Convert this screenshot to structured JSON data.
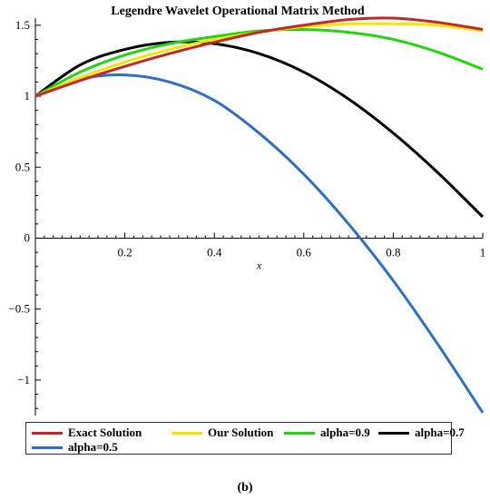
{
  "chart_data": {
    "type": "line",
    "title": "Legendre Wavelet Operational Matrix Method",
    "xlabel": "x",
    "ylabel": "",
    "xlim": [
      0,
      1
    ],
    "ylim": [
      -1.25,
      1.55
    ],
    "x_ticks": [
      "0.2",
      "0.4",
      "0.6",
      "0.8",
      "1"
    ],
    "y_ticks": [
      "1.5",
      "1",
      "0.5",
      "0",
      "−0.5",
      "−1"
    ],
    "grid": false,
    "legend_position": "bottom",
    "series": [
      {
        "name": "Exact Solution",
        "color": "#c0282a",
        "x": [
          0,
          0.1,
          0.2,
          0.3,
          0.4,
          0.5,
          0.6,
          0.7,
          0.8,
          0.9,
          1.0
        ],
        "y": [
          1.0,
          1.11,
          1.21,
          1.3,
          1.38,
          1.45,
          1.5,
          1.54,
          1.55,
          1.52,
          1.47
        ]
      },
      {
        "name": "Our Solution",
        "color": "#f2e600",
        "x": [
          0,
          0.1,
          0.2,
          0.3,
          0.4,
          0.5,
          0.6,
          0.7,
          0.8,
          0.9,
          1.0
        ],
        "y": [
          1.0,
          1.13,
          1.24,
          1.33,
          1.4,
          1.45,
          1.49,
          1.51,
          1.51,
          1.5,
          1.46
        ]
      },
      {
        "name": "alpha=0.9",
        "color": "#22d40e",
        "x": [
          0,
          0.1,
          0.2,
          0.3,
          0.4,
          0.5,
          0.6,
          0.7,
          0.8,
          0.9,
          1.0
        ],
        "y": [
          1.0,
          1.17,
          1.29,
          1.37,
          1.42,
          1.46,
          1.47,
          1.45,
          1.4,
          1.31,
          1.19
        ]
      },
      {
        "name": "alpha=0.7",
        "color": "#000000",
        "x": [
          0,
          0.1,
          0.2,
          0.3,
          0.4,
          0.5,
          0.6,
          0.7,
          0.8,
          0.9,
          1.0
        ],
        "y": [
          1.0,
          1.22,
          1.33,
          1.38,
          1.37,
          1.3,
          1.17,
          0.98,
          0.74,
          0.46,
          0.15
        ]
      },
      {
        "name": "alpha=0.5",
        "color": "#2f6fc8",
        "x": [
          0,
          0.1,
          0.2,
          0.3,
          0.4,
          0.5,
          0.6,
          0.7,
          0.8,
          0.9,
          1.0
        ],
        "y": [
          1.0,
          1.12,
          1.15,
          1.1,
          0.97,
          0.74,
          0.45,
          0.1,
          -0.3,
          -0.75,
          -1.23
        ]
      }
    ]
  },
  "caption": "(b)"
}
